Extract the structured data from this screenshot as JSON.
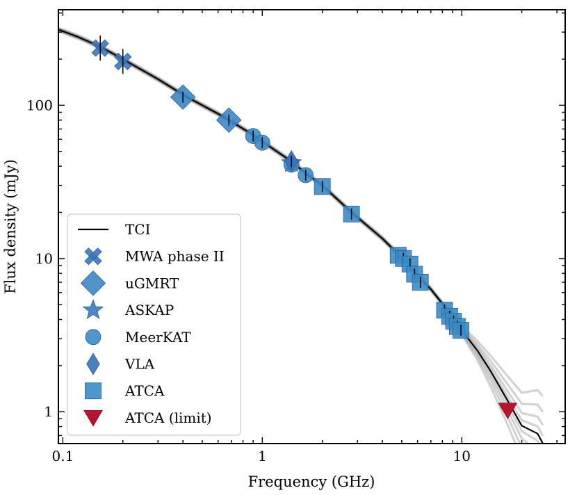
{
  "chart_data": {
    "type": "scatter",
    "xlabel": "Frequency (GHz)",
    "ylabel": "Flux density (mJy)",
    "xscale": "log",
    "yscale": "log",
    "xlim": [
      0.095,
      33
    ],
    "ylim": [
      0.62,
      420
    ],
    "xticks": [
      {
        "value": 0.1,
        "label": "0.1"
      },
      {
        "value": 1,
        "label": "1"
      },
      {
        "value": 10,
        "label": "10"
      }
    ],
    "yticks": [
      {
        "value": 1,
        "label": "1"
      },
      {
        "value": 10,
        "label": "10"
      },
      {
        "value": 100,
        "label": "100"
      }
    ],
    "legend_position": "lower-left",
    "model": {
      "name": "TCI",
      "color": "#000000",
      "x": [
        0.095,
        0.12,
        0.155,
        0.2,
        0.3,
        0.42,
        0.6,
        0.68,
        0.9,
        1.0,
        1.4,
        1.65,
        2.0,
        2.8,
        4.0,
        4.9,
        5.5,
        6.0,
        7.0,
        8.5,
        9.0,
        9.5,
        10.0,
        12.0,
        14.0,
        17.0,
        20.0,
        24.0,
        25.5
      ],
      "y": [
        312,
        278,
        240,
        200,
        148,
        113,
        88,
        80,
        64,
        58,
        43,
        36,
        30,
        20,
        13.5,
        10.4,
        9.0,
        7.8,
        6.3,
        4.6,
        4.1,
        3.7,
        3.4,
        2.5,
        1.83,
        1.18,
        0.81,
        0.72,
        0.62
      ]
    },
    "series": [
      {
        "name": "MWA phase II",
        "marker": "x",
        "color": "#3f74b8",
        "points": [
          {
            "x": 0.154,
            "y": 236
          },
          {
            "x": 0.2,
            "y": 193
          }
        ]
      },
      {
        "name": "uGMRT",
        "marker": "diamond",
        "color": "#3d86c4",
        "points": [
          {
            "x": 0.4,
            "y": 113
          },
          {
            "x": 0.68,
            "y": 80
          }
        ]
      },
      {
        "name": "ASKAP",
        "marker": "star",
        "color": "#3a7bc0",
        "points": [
          {
            "x": 1.4,
            "y": 42
          }
        ]
      },
      {
        "name": "MeerKAT",
        "marker": "circle",
        "color": "#3b8bc5",
        "points": [
          {
            "x": 0.9,
            "y": 63
          },
          {
            "x": 1.0,
            "y": 57
          },
          {
            "x": 1.4,
            "y": 41
          },
          {
            "x": 1.65,
            "y": 35
          }
        ]
      },
      {
        "name": "VLA",
        "marker": "thin_diamond",
        "color": "#3a70b5",
        "points": [
          {
            "x": 1.4,
            "y": 43
          }
        ]
      },
      {
        "name": "ATCA",
        "marker": "square",
        "color": "#3b8bc5",
        "points": [
          {
            "x": 2.0,
            "y": 29.5
          },
          {
            "x": 2.8,
            "y": 19.5
          },
          {
            "x": 4.8,
            "y": 10.5
          },
          {
            "x": 5.1,
            "y": 10.0
          },
          {
            "x": 5.5,
            "y": 9.2
          },
          {
            "x": 5.8,
            "y": 7.9
          },
          {
            "x": 6.2,
            "y": 7.0
          },
          {
            "x": 8.2,
            "y": 4.6
          },
          {
            "x": 8.7,
            "y": 4.2
          },
          {
            "x": 9.1,
            "y": 3.9
          },
          {
            "x": 9.5,
            "y": 3.6
          },
          {
            "x": 9.9,
            "y": 3.4
          }
        ]
      },
      {
        "name": "ATCA (limit)",
        "marker": "triangle_down",
        "color": "#b5152e",
        "points": [
          {
            "x": 17.0,
            "y": 1.02
          }
        ]
      }
    ]
  }
}
